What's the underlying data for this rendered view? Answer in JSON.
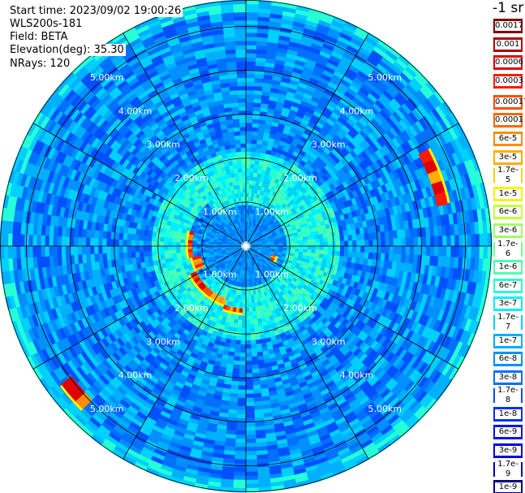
{
  "header": {
    "start_time": "Start time: 2023/09/02 19:00:26",
    "instrument": "WLS200s-181",
    "field": "Field: BETA",
    "elevation": "Elevation(deg): 35.30",
    "nrays": "NRays: 120"
  },
  "colorbar": {
    "unit": "-1 sr",
    "levels": [
      {
        "label": "0.0017",
        "color": "#7f0000"
      },
      {
        "label": "0.001",
        "color": "#b20000"
      },
      {
        "label": "0.0006",
        "color": "#e00000"
      },
      {
        "label": "0.0003",
        "color": "#ff1a00"
      },
      {
        "label": "0.00017",
        "color": "#ff4d00"
      },
      {
        "label": "0.0001",
        "color": "#ff6600"
      },
      {
        "label": "6e-5",
        "color": "#ff8c00"
      },
      {
        "label": "3e-5",
        "color": "#ffad00"
      },
      {
        "label": "1.7e-5",
        "color": "#ffd000"
      },
      {
        "label": "1e-5",
        "color": "#f5f500"
      },
      {
        "label": "6e-6",
        "color": "#c8ff36"
      },
      {
        "label": "3e-6",
        "color": "#9eff60"
      },
      {
        "label": "1.7e-6",
        "color": "#72ff8c"
      },
      {
        "label": "1e-6",
        "color": "#4dffb2"
      },
      {
        "label": "6e-7",
        "color": "#26ffd8"
      },
      {
        "label": "3e-7",
        "color": "#00f0ff"
      },
      {
        "label": "1.7e-7",
        "color": "#00d0ff"
      },
      {
        "label": "1e-7",
        "color": "#00b0ff"
      },
      {
        "label": "6e-8",
        "color": "#0090ff"
      },
      {
        "label": "3e-8",
        "color": "#0070ff"
      },
      {
        "label": "1.7e-8",
        "color": "#0050ff"
      },
      {
        "label": "1e-8",
        "color": "#0030ff"
      },
      {
        "label": "6e-9",
        "color": "#0010ff"
      },
      {
        "label": "3e-9",
        "color": "#0000e0"
      },
      {
        "label": "1.7e-9",
        "color": "#0000b0"
      },
      {
        "label": "1e-9",
        "color": "#00007f"
      }
    ]
  },
  "range_rings_km": [
    1,
    2,
    3,
    4,
    5
  ],
  "range_labels": [
    "1.00km",
    "2.00km",
    "3.00km",
    "4.00km",
    "5.00km"
  ],
  "spoke_angles_deg": [
    0,
    30,
    60,
    90,
    120,
    150,
    180,
    210,
    240,
    270,
    300,
    330
  ],
  "max_range_km": 5.6,
  "echoes": [
    {
      "name": "aerosol-layer-northwest",
      "az_from": 243,
      "az_to": 258,
      "r_from": 1.05,
      "r_to": 1.25
    },
    {
      "name": "aerosol-layer-west",
      "az_from": 258,
      "az_to": 285,
      "r_from": 1.22,
      "r_to": 1.32
    },
    {
      "name": "aerosol-layer-southwest",
      "az_from": 200,
      "az_to": 243,
      "r_from": 1.28,
      "r_to": 1.42
    },
    {
      "name": "aerosol-layer-south",
      "az_from": 183,
      "az_to": 200,
      "r_from": 1.42,
      "r_to": 1.52
    },
    {
      "name": "echo-east-small",
      "az_from": 108,
      "az_to": 120,
      "r_from": 0.62,
      "r_to": 0.72
    },
    {
      "name": "echo-east-far",
      "az_from": 62,
      "az_to": 78,
      "r_from": 4.45,
      "r_to": 4.7
    },
    {
      "name": "echo-southwest-far",
      "az_from": 225,
      "az_to": 233,
      "r_from": 4.95,
      "r_to": 5.25
    }
  ]
}
